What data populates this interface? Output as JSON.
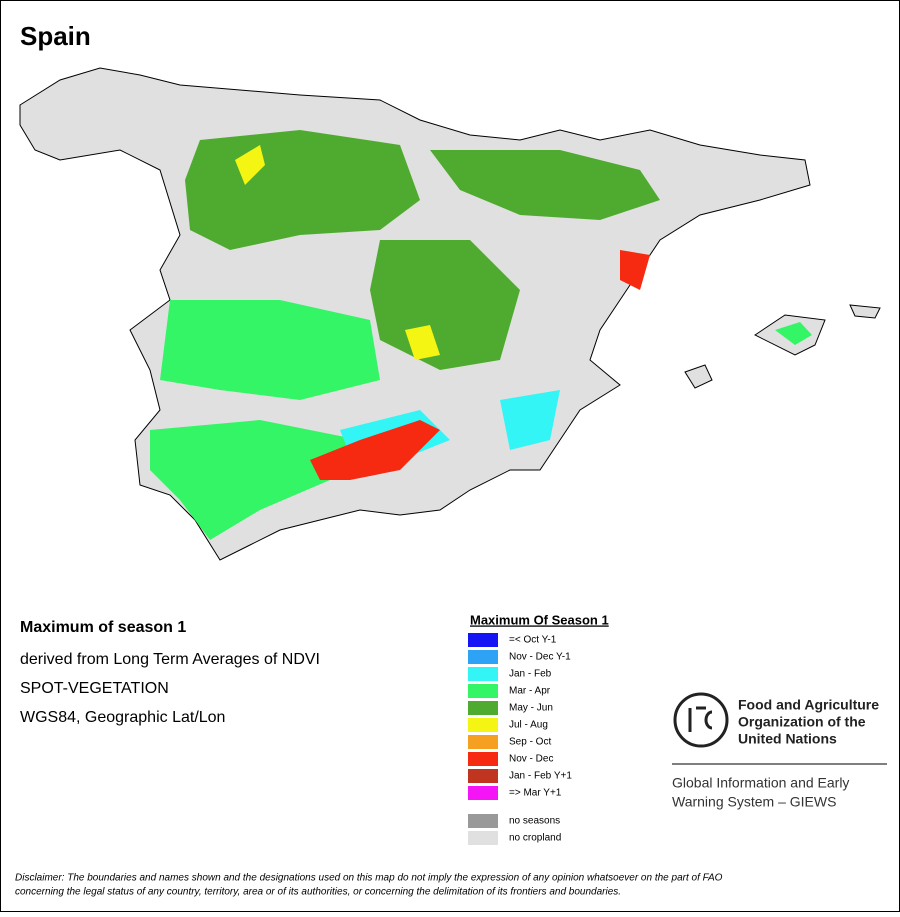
{
  "header": {
    "title": "Spain"
  },
  "description": [
    "Maximum of season 1",
    "derived from Long Term Averages of NDVI",
    "SPOT-VEGETATION",
    "WGS84, Geographic Lat/Lon"
  ],
  "legend": {
    "title": "Maximum Of Season 1",
    "items": [
      {
        "label": "=< Oct Y-1",
        "color": "#1414f5"
      },
      {
        "label": "Nov - Dec Y-1",
        "color": "#2ea2f5"
      },
      {
        "label": "Jan - Feb",
        "color": "#33f5f5"
      },
      {
        "label": "Mar - Apr",
        "color": "#33f566"
      },
      {
        "label": "May - Jun",
        "color": "#4fab2f"
      },
      {
        "label": "Jul - Aug",
        "color": "#f5f514"
      },
      {
        "label": "Sep - Oct",
        "color": "#f5a020"
      },
      {
        "label": "Nov - Dec",
        "color": "#f52a10"
      },
      {
        "label": "Jan - Feb Y+1",
        "color": "#c03520"
      },
      {
        "label": "=> Mar Y+1",
        "color": "#f514f5"
      }
    ],
    "extra": [
      {
        "label": "no seasons",
        "color": "#999999"
      },
      {
        "label": "no cropland",
        "color": "#e0e0e0"
      }
    ]
  },
  "organization": {
    "name": [
      "Food and Agriculture",
      "Organization of the",
      "United Nations"
    ],
    "system": [
      "Global Information and Early",
      "Warning System – GIEWS"
    ]
  },
  "disclaimer": [
    "Disclaimer: The boundaries and names shown and the designations used on this map do not imply the expression of any opinion whatsoever on the part of FAO",
    "concerning the legal status of any country, territory, area or of its authorities, or concerning the delimitation of its frontiers and boundaries."
  ]
}
